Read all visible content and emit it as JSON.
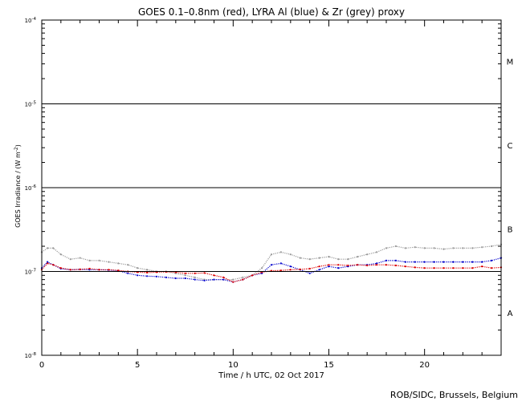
{
  "chart_data": {
    "type": "scatter",
    "title": "GOES 0.1–0.8nm (red), LYRA Al (blue) & Zr (grey) proxy",
    "xlabel": "Time / h UTC, 02 Oct 2017",
    "ylabel_main": "GOES Irradiance / (W m",
    "ylabel_sup": "-2",
    "ylabel_close": ")",
    "credit": "ROB/SIDC, Brussels, Belgium",
    "xlim": [
      0,
      24
    ],
    "x_ticks": [
      0,
      5,
      10,
      15,
      20
    ],
    "ylim": [
      1e-08,
      0.0001
    ],
    "yscale": "log",
    "y_ticks": [
      {
        "value": 1e-08,
        "base": "10",
        "exp": "-8"
      },
      {
        "value": 1e-07,
        "base": "10",
        "exp": "-7"
      },
      {
        "value": 1e-06,
        "base": "10",
        "exp": "-6"
      },
      {
        "value": 1e-05,
        "base": "10",
        "exp": "-5"
      },
      {
        "value": 0.0001,
        "base": "10",
        "exp": "-4"
      }
    ],
    "flare_lines": [
      1e-07,
      1e-06,
      1e-05
    ],
    "flare_classes": [
      {
        "label": "A",
        "y": 3.2e-08
      },
      {
        "label": "B",
        "y": 3.2e-07
      },
      {
        "label": "C",
        "y": 3.2e-06
      },
      {
        "label": "M",
        "y": 3.2e-05
      }
    ],
    "series": [
      {
        "name": "Zr (grey)",
        "color": "#999999",
        "x": [
          0,
          0.3,
          0.6,
          1,
          1.5,
          2,
          2.5,
          3,
          3.5,
          4,
          4.5,
          5,
          5.5,
          6,
          6.5,
          7,
          7.5,
          8,
          8.5,
          9,
          9.5,
          10,
          10.5,
          11,
          11.5,
          12,
          12.5,
          13,
          13.5,
          14,
          14.5,
          15,
          15.5,
          16,
          16.5,
          17,
          17.5,
          18,
          18.5,
          19,
          19.5,
          20,
          20.5,
          21,
          21.5,
          22,
          22.5,
          23,
          23.5,
          24
        ],
        "y": [
          1.7e-07,
          1.9e-07,
          1.9e-07,
          1.6e-07,
          1.4e-07,
          1.45e-07,
          1.35e-07,
          1.35e-07,
          1.3e-07,
          1.25e-07,
          1.2e-07,
          1.1e-07,
          1.05e-07,
          1e-07,
          1e-07,
          9.5e-08,
          9e-08,
          8.5e-08,
          8e-08,
          8e-08,
          8e-08,
          8e-08,
          8.5e-08,
          9e-08,
          1.1e-07,
          1.6e-07,
          1.7e-07,
          1.6e-07,
          1.45e-07,
          1.4e-07,
          1.45e-07,
          1.5e-07,
          1.4e-07,
          1.4e-07,
          1.5e-07,
          1.6e-07,
          1.7e-07,
          1.9e-07,
          2e-07,
          1.9e-07,
          1.95e-07,
          1.9e-07,
          1.9e-07,
          1.85e-07,
          1.9e-07,
          1.9e-07,
          1.9e-07,
          1.95e-07,
          2e-07,
          2.1e-07
        ]
      },
      {
        "name": "Al (blue)",
        "color": "#0000cc",
        "x": [
          0,
          0.3,
          0.6,
          1,
          1.5,
          2,
          2.5,
          3,
          3.5,
          4,
          4.5,
          5,
          5.5,
          6,
          6.5,
          7,
          7.5,
          8,
          8.5,
          9,
          9.5,
          10,
          10.5,
          11,
          11.5,
          12,
          12.5,
          13,
          13.5,
          14,
          14.5,
          15,
          15.5,
          16,
          16.5,
          17,
          17.5,
          18,
          18.5,
          19,
          19.5,
          20,
          20.5,
          21,
          21.5,
          22,
          22.5,
          23,
          23.5,
          24
        ],
        "y": [
          1.1e-07,
          1.3e-07,
          1.2e-07,
          1.08e-07,
          1.05e-07,
          1.06e-07,
          1.05e-07,
          1.05e-07,
          1.04e-07,
          1.02e-07,
          9.5e-08,
          9e-08,
          8.8e-08,
          8.7e-08,
          8.5e-08,
          8.3e-08,
          8.3e-08,
          8e-08,
          7.8e-08,
          8e-08,
          8e-08,
          7.5e-08,
          8e-08,
          9e-08,
          9.5e-08,
          1.2e-07,
          1.25e-07,
          1.15e-07,
          1.05e-07,
          9.5e-08,
          1.05e-07,
          1.15e-07,
          1.1e-07,
          1.15e-07,
          1.2e-07,
          1.2e-07,
          1.25e-07,
          1.35e-07,
          1.35e-07,
          1.3e-07,
          1.3e-07,
          1.3e-07,
          1.3e-07,
          1.3e-07,
          1.3e-07,
          1.3e-07,
          1.3e-07,
          1.3e-07,
          1.35e-07,
          1.45e-07
        ]
      },
      {
        "name": "GOES 0.1–0.8nm (red)",
        "color": "#dd0000",
        "x": [
          0,
          0.3,
          0.6,
          1,
          1.5,
          2,
          2.5,
          3,
          3.5,
          4,
          4.5,
          5,
          5.5,
          6,
          6.5,
          7,
          7.5,
          8,
          8.5,
          9,
          9.5,
          10,
          10.5,
          11,
          11.5,
          12,
          12.5,
          13,
          13.5,
          14,
          14.5,
          15,
          15.5,
          16,
          16.5,
          17,
          17.5,
          18,
          18.5,
          19,
          19.5,
          20,
          20.5,
          21,
          21.5,
          22,
          22.5,
          23,
          23.5,
          24
        ],
        "y": [
          1.05e-07,
          1.25e-07,
          1.2e-07,
          1.1e-07,
          1.05e-07,
          1.06e-07,
          1.08e-07,
          1.05e-07,
          1.05e-07,
          1.03e-07,
          1e-07,
          9.8e-08,
          9.7e-08,
          9.8e-08,
          9.9e-08,
          9.8e-08,
          9.5e-08,
          9.5e-08,
          9.6e-08,
          9e-08,
          8.5e-08,
          7.5e-08,
          8e-08,
          9e-08,
          9.8e-08,
          1.02e-07,
          1.03e-07,
          1.05e-07,
          1.06e-07,
          1.08e-07,
          1.15e-07,
          1.2e-07,
          1.2e-07,
          1.18e-07,
          1.2e-07,
          1.18e-07,
          1.2e-07,
          1.2e-07,
          1.18e-07,
          1.15e-07,
          1.12e-07,
          1.1e-07,
          1.1e-07,
          1.1e-07,
          1.1e-07,
          1.1e-07,
          1.1e-07,
          1.15e-07,
          1.1e-07,
          1.12e-07
        ]
      }
    ],
    "grid": false,
    "legend": "none"
  }
}
